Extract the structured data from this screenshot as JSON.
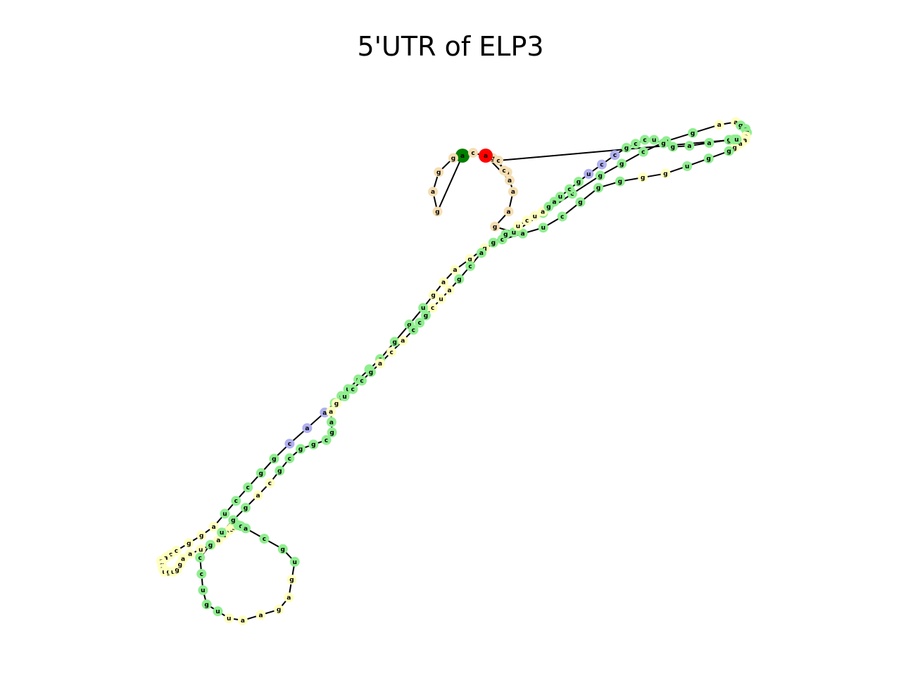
{
  "title": "5'UTR of ELP3",
  "colors": {
    "stem": "#90ee90",
    "loop": "#ffffbf",
    "hairpin_loop": "#b0b0f0",
    "external_region": "#f5deb3",
    "five_prime_end": "#007f00",
    "three_prime_end": "#ff0000",
    "base_pair_line": "#ff2200",
    "backbone": "#000000"
  },
  "sequence_segments": [
    {
      "region": "external",
      "bases": "agaggcgaaag"
    },
    {
      "region": "stem",
      "bases": "ugcggcgg"
    },
    {
      "region": "loop",
      "bases": "aa"
    },
    {
      "region": "stem",
      "bases": "gcg"
    },
    {
      "region": "loop",
      "bases": "aaag"
    },
    {
      "region": "stem",
      "bases": "ggu"
    },
    {
      "region": "loop",
      "bases": "gg"
    },
    {
      "region": "stem",
      "bases": "gggcuac"
    },
    {
      "region": "loop",
      "bases": "ggaag"
    },
    {
      "region": "stem",
      "bases": "uggccuugg"
    },
    {
      "region": "hairpin",
      "bases": "aac"
    },
    {
      "region": "stem",
      "bases": "ggccu"
    },
    {
      "region": "loop",
      "bases": "aggccaaguuguggaaucauagga"
    },
    {
      "region": "stem",
      "bases": "ucacgu"
    },
    {
      "region": "loop",
      "bases": "gagaau"
    },
    {
      "region": "stem",
      "bases": "uguccgugg"
    },
    {
      "region": "loop",
      "bases": "ac"
    },
    {
      "region": "stem",
      "bases": "gcggcga"
    },
    {
      "region": "loop",
      "bases": "ag"
    },
    {
      "region": "stem",
      "bases": "uccg"
    },
    {
      "region": "loop",
      "bases": "aca"
    },
    {
      "region": "stem",
      "bases": "ccg"
    },
    {
      "region": "loop",
      "bases": "cua"
    },
    {
      "region": "stem",
      "bases": "gcagg"
    },
    {
      "region": "loop",
      "bases": "ucua"
    },
    {
      "region": "stem",
      "bases": "gaucg"
    },
    {
      "region": "hairpin",
      "bases": "ucc"
    },
    {
      "region": "stem",
      "bases": "gccuggaaguu"
    },
    {
      "region": "external",
      "bases": "ccaa"
    }
  ]
}
